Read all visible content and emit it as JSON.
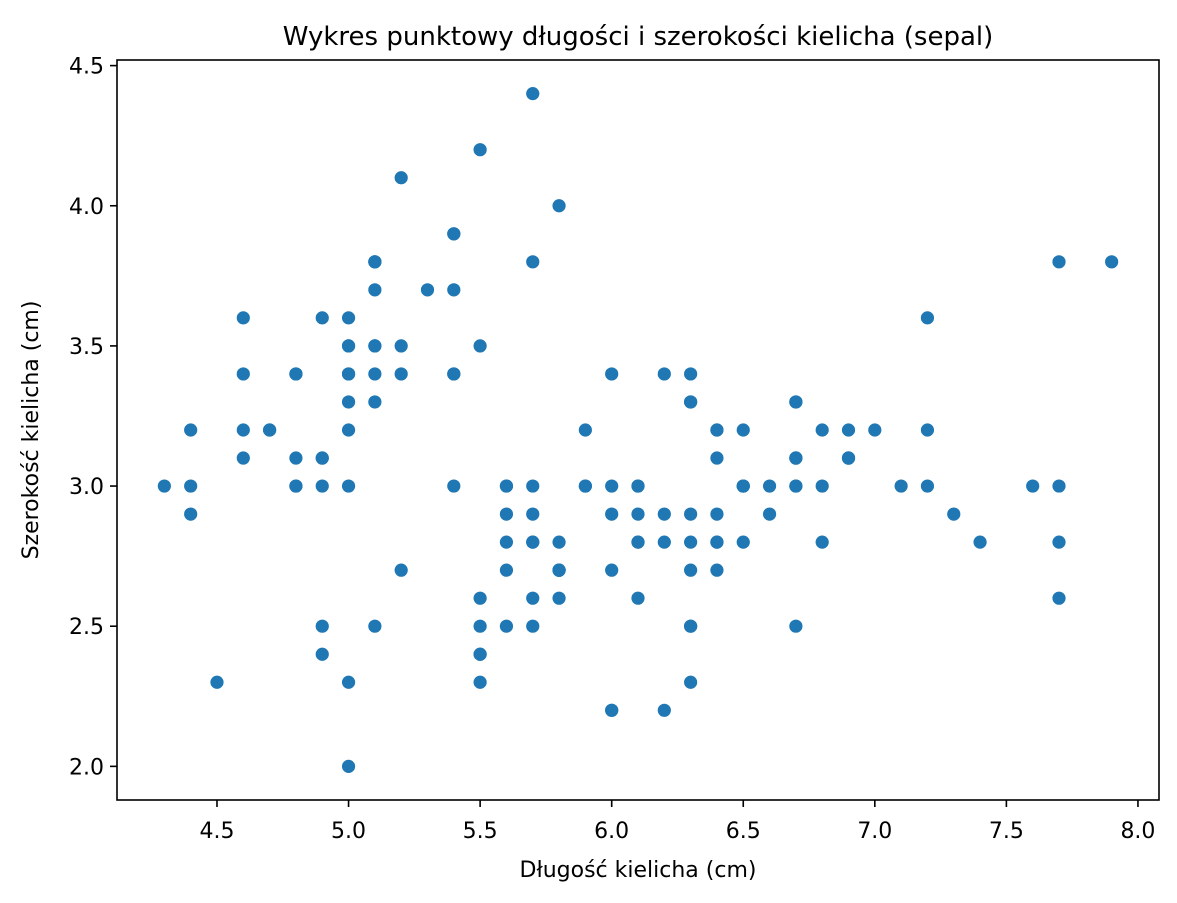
{
  "chart_data": {
    "type": "scatter",
    "title": "Wykres punktowy długości i szerokości kielicha (sepal)",
    "xlabel": "Długość kielicha (cm)",
    "ylabel": "Szerokość kielicha (cm)",
    "xlim": [
      4.12,
      8.08
    ],
    "ylim": [
      1.88,
      4.52
    ],
    "xticks": [
      "4.5",
      "5.0",
      "5.5",
      "6.0",
      "6.5",
      "7.0",
      "7.5",
      "8.0"
    ],
    "yticks": [
      "2.0",
      "2.5",
      "3.0",
      "3.5",
      "4.0",
      "4.5"
    ],
    "grid": false,
    "marker_color": "#1f77b4",
    "points": [
      [
        5.1,
        3.5
      ],
      [
        4.9,
        3.0
      ],
      [
        4.7,
        3.2
      ],
      [
        4.6,
        3.1
      ],
      [
        5.0,
        3.6
      ],
      [
        5.4,
        3.9
      ],
      [
        4.6,
        3.4
      ],
      [
        5.0,
        3.4
      ],
      [
        4.4,
        2.9
      ],
      [
        4.9,
        3.1
      ],
      [
        5.4,
        3.7
      ],
      [
        4.8,
        3.4
      ],
      [
        4.8,
        3.0
      ],
      [
        4.3,
        3.0
      ],
      [
        5.8,
        4.0
      ],
      [
        5.7,
        4.4
      ],
      [
        5.4,
        3.9
      ],
      [
        5.1,
        3.5
      ],
      [
        5.7,
        3.8
      ],
      [
        5.1,
        3.8
      ],
      [
        5.4,
        3.4
      ],
      [
        5.1,
        3.7
      ],
      [
        4.6,
        3.6
      ],
      [
        5.1,
        3.3
      ],
      [
        4.8,
        3.4
      ],
      [
        5.0,
        3.0
      ],
      [
        5.0,
        3.4
      ],
      [
        5.2,
        3.5
      ],
      [
        5.2,
        3.4
      ],
      [
        4.7,
        3.2
      ],
      [
        4.8,
        3.1
      ],
      [
        5.4,
        3.4
      ],
      [
        5.2,
        4.1
      ],
      [
        5.5,
        4.2
      ],
      [
        4.9,
        3.1
      ],
      [
        5.0,
        3.2
      ],
      [
        5.5,
        3.5
      ],
      [
        4.9,
        3.6
      ],
      [
        4.4,
        3.0
      ],
      [
        5.1,
        3.4
      ],
      [
        5.0,
        3.5
      ],
      [
        4.5,
        2.3
      ],
      [
        4.4,
        3.2
      ],
      [
        5.0,
        3.5
      ],
      [
        5.1,
        3.8
      ],
      [
        4.8,
        3.0
      ],
      [
        5.1,
        3.8
      ],
      [
        4.6,
        3.2
      ],
      [
        5.3,
        3.7
      ],
      [
        5.0,
        3.3
      ],
      [
        7.0,
        3.2
      ],
      [
        6.4,
        3.2
      ],
      [
        6.9,
        3.1
      ],
      [
        5.5,
        2.3
      ],
      [
        6.5,
        2.8
      ],
      [
        5.7,
        2.8
      ],
      [
        6.3,
        3.3
      ],
      [
        4.9,
        2.4
      ],
      [
        6.6,
        2.9
      ],
      [
        5.2,
        2.7
      ],
      [
        5.0,
        2.0
      ],
      [
        5.9,
        3.0
      ],
      [
        6.0,
        2.2
      ],
      [
        6.1,
        2.9
      ],
      [
        5.6,
        2.9
      ],
      [
        6.7,
        3.1
      ],
      [
        5.6,
        3.0
      ],
      [
        5.8,
        2.7
      ],
      [
        6.2,
        2.2
      ],
      [
        5.6,
        2.5
      ],
      [
        5.9,
        3.2
      ],
      [
        6.1,
        2.8
      ],
      [
        6.3,
        2.5
      ],
      [
        6.1,
        2.8
      ],
      [
        6.4,
        2.9
      ],
      [
        6.6,
        3.0
      ],
      [
        6.8,
        2.8
      ],
      [
        6.7,
        3.0
      ],
      [
        6.0,
        2.9
      ],
      [
        5.7,
        2.6
      ],
      [
        5.5,
        2.4
      ],
      [
        5.5,
        2.4
      ],
      [
        5.8,
        2.7
      ],
      [
        6.0,
        2.7
      ],
      [
        5.4,
        3.0
      ],
      [
        6.0,
        3.4
      ],
      [
        6.7,
        3.1
      ],
      [
        6.3,
        2.3
      ],
      [
        5.6,
        3.0
      ],
      [
        5.5,
        2.5
      ],
      [
        5.5,
        2.6
      ],
      [
        6.1,
        3.0
      ],
      [
        5.8,
        2.6
      ],
      [
        5.0,
        2.3
      ],
      [
        5.6,
        2.7
      ],
      [
        5.7,
        3.0
      ],
      [
        5.7,
        2.9
      ],
      [
        6.2,
        2.9
      ],
      [
        5.1,
        2.5
      ],
      [
        5.7,
        2.8
      ],
      [
        6.3,
        3.3
      ],
      [
        5.8,
        2.7
      ],
      [
        7.1,
        3.0
      ],
      [
        6.3,
        2.9
      ],
      [
        6.5,
        3.0
      ],
      [
        7.6,
        3.0
      ],
      [
        4.9,
        2.5
      ],
      [
        7.3,
        2.9
      ],
      [
        6.7,
        2.5
      ],
      [
        7.2,
        3.6
      ],
      [
        6.5,
        3.2
      ],
      [
        6.4,
        2.7
      ],
      [
        6.8,
        3.0
      ],
      [
        5.7,
        2.5
      ],
      [
        5.8,
        2.8
      ],
      [
        6.4,
        3.2
      ],
      [
        6.5,
        3.0
      ],
      [
        7.7,
        3.8
      ],
      [
        7.7,
        2.6
      ],
      [
        6.0,
        2.2
      ],
      [
        6.9,
        3.2
      ],
      [
        5.6,
        2.8
      ],
      [
        7.7,
        2.8
      ],
      [
        6.3,
        2.7
      ],
      [
        6.7,
        3.3
      ],
      [
        7.2,
        3.2
      ],
      [
        6.2,
        2.8
      ],
      [
        6.1,
        3.0
      ],
      [
        6.4,
        2.8
      ],
      [
        7.2,
        3.0
      ],
      [
        7.4,
        2.8
      ],
      [
        7.9,
        3.8
      ],
      [
        6.4,
        2.8
      ],
      [
        6.3,
        2.8
      ],
      [
        6.1,
        2.6
      ],
      [
        7.7,
        3.0
      ],
      [
        6.3,
        3.4
      ],
      [
        6.4,
        3.1
      ],
      [
        6.0,
        3.0
      ],
      [
        6.9,
        3.1
      ],
      [
        6.7,
        3.1
      ],
      [
        6.9,
        3.1
      ],
      [
        5.8,
        2.7
      ],
      [
        6.8,
        3.2
      ],
      [
        6.7,
        3.3
      ],
      [
        6.7,
        3.0
      ],
      [
        6.3,
        2.5
      ],
      [
        6.5,
        3.0
      ],
      [
        6.2,
        3.4
      ],
      [
        5.9,
        3.0
      ]
    ]
  }
}
